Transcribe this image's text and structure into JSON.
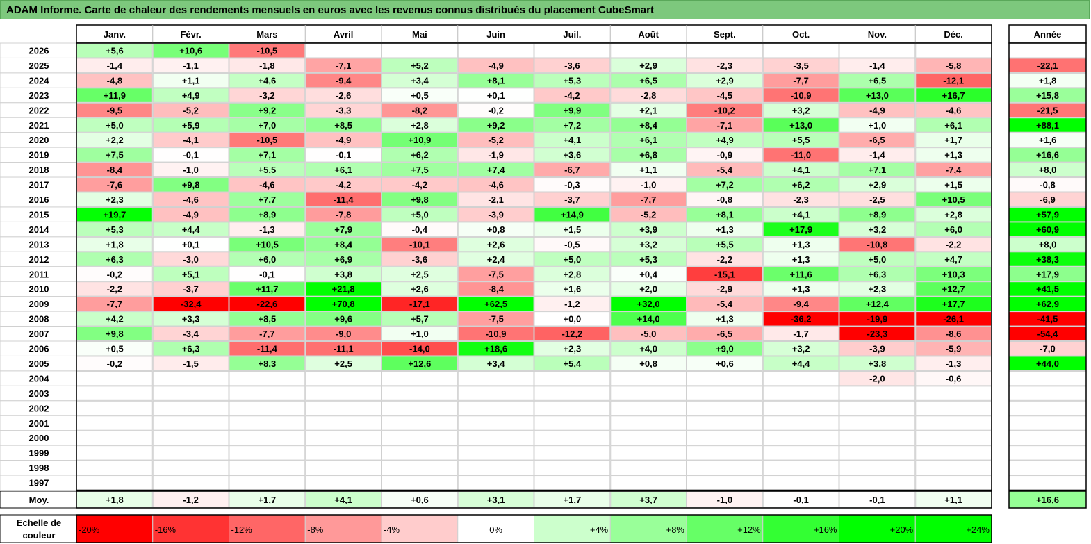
{
  "title": "ADAM Informe. Carte de chaleur des rendements mensuels en euros avec les revenus connus distribués du placement CubeSmart",
  "chart_data": {
    "type": "heatmap",
    "title": "ADAM Informe. Carte de chaleur des rendements mensuels en euros avec les revenus connus distribués du placement CubeSmart",
    "months": [
      "Janv.",
      "Févr.",
      "Mars",
      "Avril",
      "Mai",
      "Juin",
      "Juil.",
      "Août",
      "Sept.",
      "Oct.",
      "Nov.",
      "Déc."
    ],
    "year_label": "Année",
    "rows": [
      {
        "year": "2026",
        "values": [
          "+5,6",
          "+10,6",
          "-10,5",
          "",
          "",
          "",
          "",
          "",
          "",
          "",
          "",
          ""
        ],
        "annual": ""
      },
      {
        "year": "2025",
        "values": [
          "-1,4",
          "-1,1",
          "-1,8",
          "-7,1",
          "+5,2",
          "-4,9",
          "-3,6",
          "+2,9",
          "-2,3",
          "-3,5",
          "-1,4",
          "-5,8"
        ],
        "annual": "-22,1"
      },
      {
        "year": "2024",
        "values": [
          "-4,8",
          "+1,1",
          "+4,6",
          "-9,4",
          "+3,4",
          "+8,1",
          "+5,3",
          "+6,5",
          "+2,9",
          "-7,7",
          "+6,5",
          "-12,1"
        ],
        "annual": "+1,8"
      },
      {
        "year": "2023",
        "values": [
          "+11,9",
          "+4,9",
          "-3,2",
          "-2,6",
          "+0,5",
          "+0,1",
          "-4,2",
          "-2,8",
          "-4,5",
          "-10,9",
          "+13,0",
          "+16,7"
        ],
        "annual": "+15,8"
      },
      {
        "year": "2022",
        "values": [
          "-9,5",
          "-5,2",
          "+9,2",
          "-3,3",
          "-8,2",
          "-0,2",
          "+9,9",
          "+2,1",
          "-10,2",
          "+3,2",
          "-4,9",
          "-4,6"
        ],
        "annual": "-21,5"
      },
      {
        "year": "2021",
        "values": [
          "+5,0",
          "+5,9",
          "+7,0",
          "+8,5",
          "+2,8",
          "+9,2",
          "+7,2",
          "+8,4",
          "-7,1",
          "+13,0",
          "+1,0",
          "+6,1"
        ],
        "annual": "+88,1"
      },
      {
        "year": "2020",
        "values": [
          "+2,2",
          "-4,1",
          "-10,5",
          "-4,9",
          "+10,9",
          "-5,2",
          "+4,1",
          "+6,1",
          "+4,9",
          "+5,5",
          "-6,5",
          "+1,7"
        ],
        "annual": "+1,6"
      },
      {
        "year": "2019",
        "values": [
          "+7,5",
          "-0,1",
          "+7,1",
          "-0,1",
          "+6,2",
          "-1,9",
          "+3,6",
          "+6,8",
          "-0,9",
          "-11,0",
          "-1,4",
          "+1,3"
        ],
        "annual": "+16,6"
      },
      {
        "year": "2018",
        "values": [
          "-8,4",
          "-1,0",
          "+5,5",
          "+6,1",
          "+7,5",
          "+7,4",
          "-6,7",
          "+1,1",
          "-5,4",
          "+4,1",
          "+7,1",
          "-7,4"
        ],
        "annual": "+8,0"
      },
      {
        "year": "2017",
        "values": [
          "-7,6",
          "+9,8",
          "-4,6",
          "-4,2",
          "-4,2",
          "-4,6",
          "-0,3",
          "-1,0",
          "+7,2",
          "+6,2",
          "+2,9",
          "+1,5"
        ],
        "annual": "-0,8"
      },
      {
        "year": "2016",
        "values": [
          "+2,3",
          "-4,6",
          "+7,7",
          "-11,4",
          "+9,8",
          "-2,1",
          "-3,7",
          "-7,7",
          "-0,8",
          "-2,3",
          "-2,5",
          "+10,5"
        ],
        "annual": "-6,9"
      },
      {
        "year": "2015",
        "values": [
          "+19,7",
          "-4,9",
          "+8,9",
          "-7,8",
          "+5,0",
          "-3,9",
          "+14,9",
          "-5,2",
          "+8,1",
          "+4,1",
          "+8,9",
          "+2,8"
        ],
        "annual": "+57,9"
      },
      {
        "year": "2014",
        "values": [
          "+5,3",
          "+4,4",
          "-1,3",
          "+7,9",
          "-0,4",
          "+0,8",
          "+1,5",
          "+3,9",
          "+1,3",
          "+17,9",
          "+3,2",
          "+6,0"
        ],
        "annual": "+60,9"
      },
      {
        "year": "2013",
        "values": [
          "+1,8",
          "+0,1",
          "+10,5",
          "+8,4",
          "-10,1",
          "+2,6",
          "-0,5",
          "+3,2",
          "+5,5",
          "+1,3",
          "-10,8",
          "-2,2"
        ],
        "annual": "+8,0"
      },
      {
        "year": "2012",
        "values": [
          "+6,3",
          "-3,0",
          "+6,0",
          "+6,9",
          "-3,6",
          "+2,4",
          "+5,0",
          "+5,3",
          "-2,2",
          "+1,3",
          "+5,0",
          "+4,7"
        ],
        "annual": "+38,3"
      },
      {
        "year": "2011",
        "values": [
          "-0,2",
          "+5,1",
          "-0,1",
          "+3,8",
          "+2,5",
          "-7,5",
          "+2,8",
          "+0,4",
          "-15,1",
          "+11,6",
          "+6,3",
          "+10,3"
        ],
        "annual": "+17,9"
      },
      {
        "year": "2010",
        "values": [
          "-2,2",
          "-3,7",
          "+11,7",
          "+21,8",
          "+2,6",
          "-8,4",
          "+1,6",
          "+2,0",
          "-2,9",
          "+1,3",
          "+2,3",
          "+12,7"
        ],
        "annual": "+41,5"
      },
      {
        "year": "2009",
        "values": [
          "-7,7",
          "-32,4",
          "-22,6",
          "+70,8",
          "-17,1",
          "+62,5",
          "-1,2",
          "+32,0",
          "-5,4",
          "-9,4",
          "+12,4",
          "+17,7"
        ],
        "annual": "+62,9"
      },
      {
        "year": "2008",
        "values": [
          "+4,2",
          "+3,3",
          "+8,5",
          "+9,6",
          "+5,7",
          "-7,5",
          "+0,0",
          "+14,0",
          "+1,3",
          "-36,2",
          "-19,9",
          "-26,1"
        ],
        "annual": "-41,5"
      },
      {
        "year": "2007",
        "values": [
          "+9,8",
          "-3,4",
          "-7,7",
          "-9,0",
          "+1,0",
          "-10,9",
          "-12,2",
          "-5,0",
          "-6,5",
          "-1,7",
          "-23,3",
          "-8,6"
        ],
        "annual": "-54,4"
      },
      {
        "year": "2006",
        "values": [
          "+0,5",
          "+6,3",
          "-11,4",
          "-11,1",
          "-14,0",
          "+18,6",
          "+2,3",
          "+4,0",
          "+9,0",
          "+3,2",
          "-3,9",
          "-5,9"
        ],
        "annual": "-7,0"
      },
      {
        "year": "2005",
        "values": [
          "-0,2",
          "-1,5",
          "+8,3",
          "+2,5",
          "+12,6",
          "+3,4",
          "+5,4",
          "+0,8",
          "+0,6",
          "+4,4",
          "+3,8",
          "-1,3"
        ],
        "annual": "+44,0"
      },
      {
        "year": "2004",
        "values": [
          "",
          "",
          "",
          "",
          "",
          "",
          "",
          "",
          "",
          "",
          "-2,0",
          "-0,6"
        ],
        "annual": ""
      },
      {
        "year": "2003",
        "values": [
          "",
          "",
          "",
          "",
          "",
          "",
          "",
          "",
          "",
          "",
          "",
          ""
        ],
        "annual": ""
      },
      {
        "year": "2002",
        "values": [
          "",
          "",
          "",
          "",
          "",
          "",
          "",
          "",
          "",
          "",
          "",
          ""
        ],
        "annual": ""
      },
      {
        "year": "2001",
        "values": [
          "",
          "",
          "",
          "",
          "",
          "",
          "",
          "",
          "",
          "",
          "",
          ""
        ],
        "annual": ""
      },
      {
        "year": "2000",
        "values": [
          "",
          "",
          "",
          "",
          "",
          "",
          "",
          "",
          "",
          "",
          "",
          ""
        ],
        "annual": ""
      },
      {
        "year": "1999",
        "values": [
          "",
          "",
          "",
          "",
          "",
          "",
          "",
          "",
          "",
          "",
          "",
          ""
        ],
        "annual": ""
      },
      {
        "year": "1998",
        "values": [
          "",
          "",
          "",
          "",
          "",
          "",
          "",
          "",
          "",
          "",
          "",
          ""
        ],
        "annual": ""
      },
      {
        "year": "1997",
        "values": [
          "",
          "",
          "",
          "",
          "",
          "",
          "",
          "",
          "",
          "",
          "",
          ""
        ],
        "annual": ""
      }
    ],
    "average": {
      "label": "Moy.",
      "values": [
        "+1,8",
        "-1,2",
        "+1,7",
        "+4,1",
        "+0,6",
        "+3,1",
        "+1,7",
        "+3,7",
        "-1,0",
        "-0,1",
        "-0,1",
        "+1,1"
      ],
      "annual": "+16,6"
    },
    "scale": {
      "label_line1": "Echelle de",
      "label_line2": "couleur",
      "labels": [
        "-20%",
        "-16%",
        "-12%",
        "-8%",
        "-4%",
        "0%",
        "+4%",
        "+8%",
        "+12%",
        "+16%",
        "+20%",
        "+24%"
      ],
      "values": [
        -20,
        -16,
        -12,
        -8,
        -4,
        0,
        4,
        8,
        12,
        16,
        20,
        24
      ]
    },
    "colors": {
      "negative": "#ff0000",
      "positive": "#00ff00",
      "neutral": "#ffffff",
      "title_bar": "#7dc87d"
    }
  }
}
